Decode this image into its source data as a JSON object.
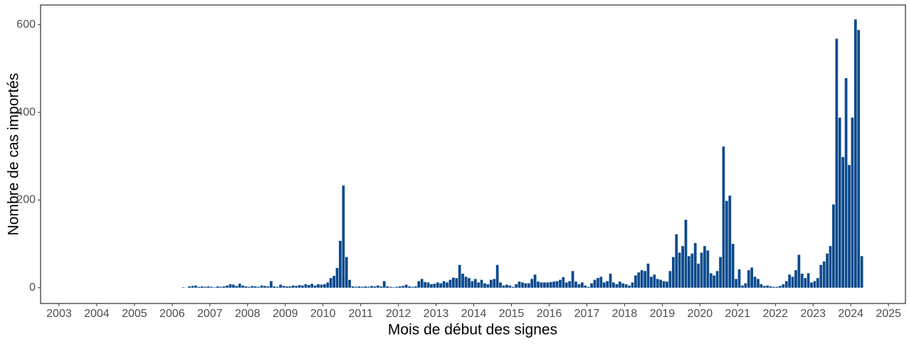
{
  "chart_data": {
    "type": "bar",
    "x_label": "Mois de début des signes",
    "y_label": "Nombre de cas importés",
    "color": "#0b4a8c",
    "xlim": [
      2002.51,
      2025.45
    ],
    "ylim": [
      -36,
      645
    ],
    "xticks": [
      2003,
      2004,
      2005,
      2006,
      2007,
      2008,
      2009,
      2010,
      2011,
      2012,
      2013,
      2014,
      2015,
      2016,
      2017,
      2018,
      2019,
      2020,
      2021,
      2022,
      2023,
      2024,
      2025
    ],
    "yticks": [
      0,
      200,
      400,
      600
    ],
    "grid": false,
    "x": [
      2006.292,
      2006.375,
      2006.458,
      2006.542,
      2006.625,
      2006.708,
      2006.792,
      2006.875,
      2006.958,
      2007.042,
      2007.125,
      2007.208,
      2007.292,
      2007.375,
      2007.458,
      2007.542,
      2007.625,
      2007.708,
      2007.792,
      2007.875,
      2007.958,
      2008.042,
      2008.125,
      2008.208,
      2008.292,
      2008.375,
      2008.458,
      2008.542,
      2008.625,
      2008.708,
      2008.792,
      2008.875,
      2008.958,
      2009.042,
      2009.125,
      2009.208,
      2009.292,
      2009.375,
      2009.458,
      2009.542,
      2009.625,
      2009.708,
      2009.792,
      2009.875,
      2009.958,
      2010.042,
      2010.125,
      2010.208,
      2010.292,
      2010.375,
      2010.458,
      2010.542,
      2010.625,
      2010.708,
      2010.792,
      2010.875,
      2010.958,
      2011.042,
      2011.125,
      2011.208,
      2011.292,
      2011.375,
      2011.458,
      2011.542,
      2011.625,
      2011.708,
      2011.792,
      2011.875,
      2011.958,
      2012.042,
      2012.125,
      2012.208,
      2012.292,
      2012.375,
      2012.458,
      2012.542,
      2012.625,
      2012.708,
      2012.792,
      2012.875,
      2012.958,
      2013.042,
      2013.125,
      2013.208,
      2013.292,
      2013.375,
      2013.458,
      2013.542,
      2013.625,
      2013.708,
      2013.792,
      2013.875,
      2013.958,
      2014.042,
      2014.125,
      2014.208,
      2014.292,
      2014.375,
      2014.458,
      2014.542,
      2014.625,
      2014.708,
      2014.792,
      2014.875,
      2014.958,
      2015.042,
      2015.125,
      2015.208,
      2015.292,
      2015.375,
      2015.458,
      2015.542,
      2015.625,
      2015.708,
      2015.792,
      2015.875,
      2015.958,
      2016.042,
      2016.125,
      2016.208,
      2016.292,
      2016.375,
      2016.458,
      2016.542,
      2016.625,
      2016.708,
      2016.792,
      2016.875,
      2016.958,
      2017.042,
      2017.125,
      2017.208,
      2017.292,
      2017.375,
      2017.458,
      2017.542,
      2017.625,
      2017.708,
      2017.792,
      2017.875,
      2017.958,
      2018.042,
      2018.125,
      2018.208,
      2018.292,
      2018.375,
      2018.458,
      2018.542,
      2018.625,
      2018.708,
      2018.792,
      2018.875,
      2018.958,
      2019.042,
      2019.125,
      2019.208,
      2019.292,
      2019.375,
      2019.458,
      2019.542,
      2019.625,
      2019.708,
      2019.792,
      2019.875,
      2019.958,
      2020.042,
      2020.125,
      2020.208,
      2020.292,
      2020.375,
      2020.458,
      2020.542,
      2020.625,
      2020.708,
      2020.792,
      2020.875,
      2020.958,
      2021.042,
      2021.125,
      2021.208,
      2021.292,
      2021.375,
      2021.458,
      2021.542,
      2021.625,
      2021.708,
      2021.792,
      2021.875,
      2021.958,
      2022.042,
      2022.125,
      2022.208,
      2022.292,
      2022.375,
      2022.458,
      2022.542,
      2022.625,
      2022.708,
      2022.792,
      2022.875,
      2022.958,
      2023.042,
      2023.125,
      2023.208,
      2023.292,
      2023.375,
      2023.458,
      2023.542,
      2023.625,
      2023.708,
      2023.792,
      2023.875,
      2023.958,
      2024.042,
      2024.125,
      2024.208,
      2024.292
    ],
    "values": [
      1,
      0,
      3,
      4,
      5,
      2,
      3,
      2,
      3,
      2,
      1,
      3,
      2,
      3,
      5,
      8,
      7,
      4,
      9,
      5,
      3,
      2,
      4,
      3,
      2,
      5,
      4,
      3,
      15,
      3,
      2,
      7,
      4,
      3,
      3,
      5,
      4,
      6,
      5,
      8,
      6,
      9,
      5,
      8,
      7,
      8,
      12,
      22,
      27,
      45,
      107,
      233,
      70,
      18,
      3,
      2,
      3,
      2,
      3,
      2,
      4,
      3,
      5,
      3,
      15,
      3,
      2,
      1,
      2,
      3,
      4,
      7,
      3,
      2,
      3,
      15,
      20,
      13,
      12,
      8,
      9,
      12,
      10,
      15,
      12,
      18,
      23,
      22,
      52,
      32,
      25,
      22,
      15,
      20,
      12,
      18,
      10,
      8,
      18,
      20,
      52,
      12,
      5,
      7,
      5,
      2,
      8,
      14,
      12,
      10,
      10,
      20,
      30,
      14,
      12,
      12,
      12,
      13,
      14,
      15,
      18,
      24,
      12,
      15,
      38,
      14,
      8,
      12,
      5,
      2,
      10,
      18,
      22,
      25,
      12,
      15,
      32,
      12,
      8,
      14,
      10,
      8,
      5,
      12,
      28,
      35,
      40,
      38,
      55,
      25,
      30,
      20,
      18,
      15,
      14,
      38,
      70,
      122,
      80,
      95,
      155,
      72,
      78,
      102,
      55,
      80,
      95,
      85,
      33,
      28,
      38,
      70,
      322,
      198,
      210,
      100,
      20,
      42,
      5,
      10,
      40,
      46,
      25,
      20,
      8,
      4,
      5,
      3,
      2,
      2,
      4,
      8,
      15,
      30,
      25,
      40,
      75,
      32,
      22,
      33,
      12,
      15,
      22,
      52,
      60,
      78,
      95,
      190,
      568,
      388,
      298,
      478,
      280,
      388,
      612,
      588,
      72
    ]
  }
}
